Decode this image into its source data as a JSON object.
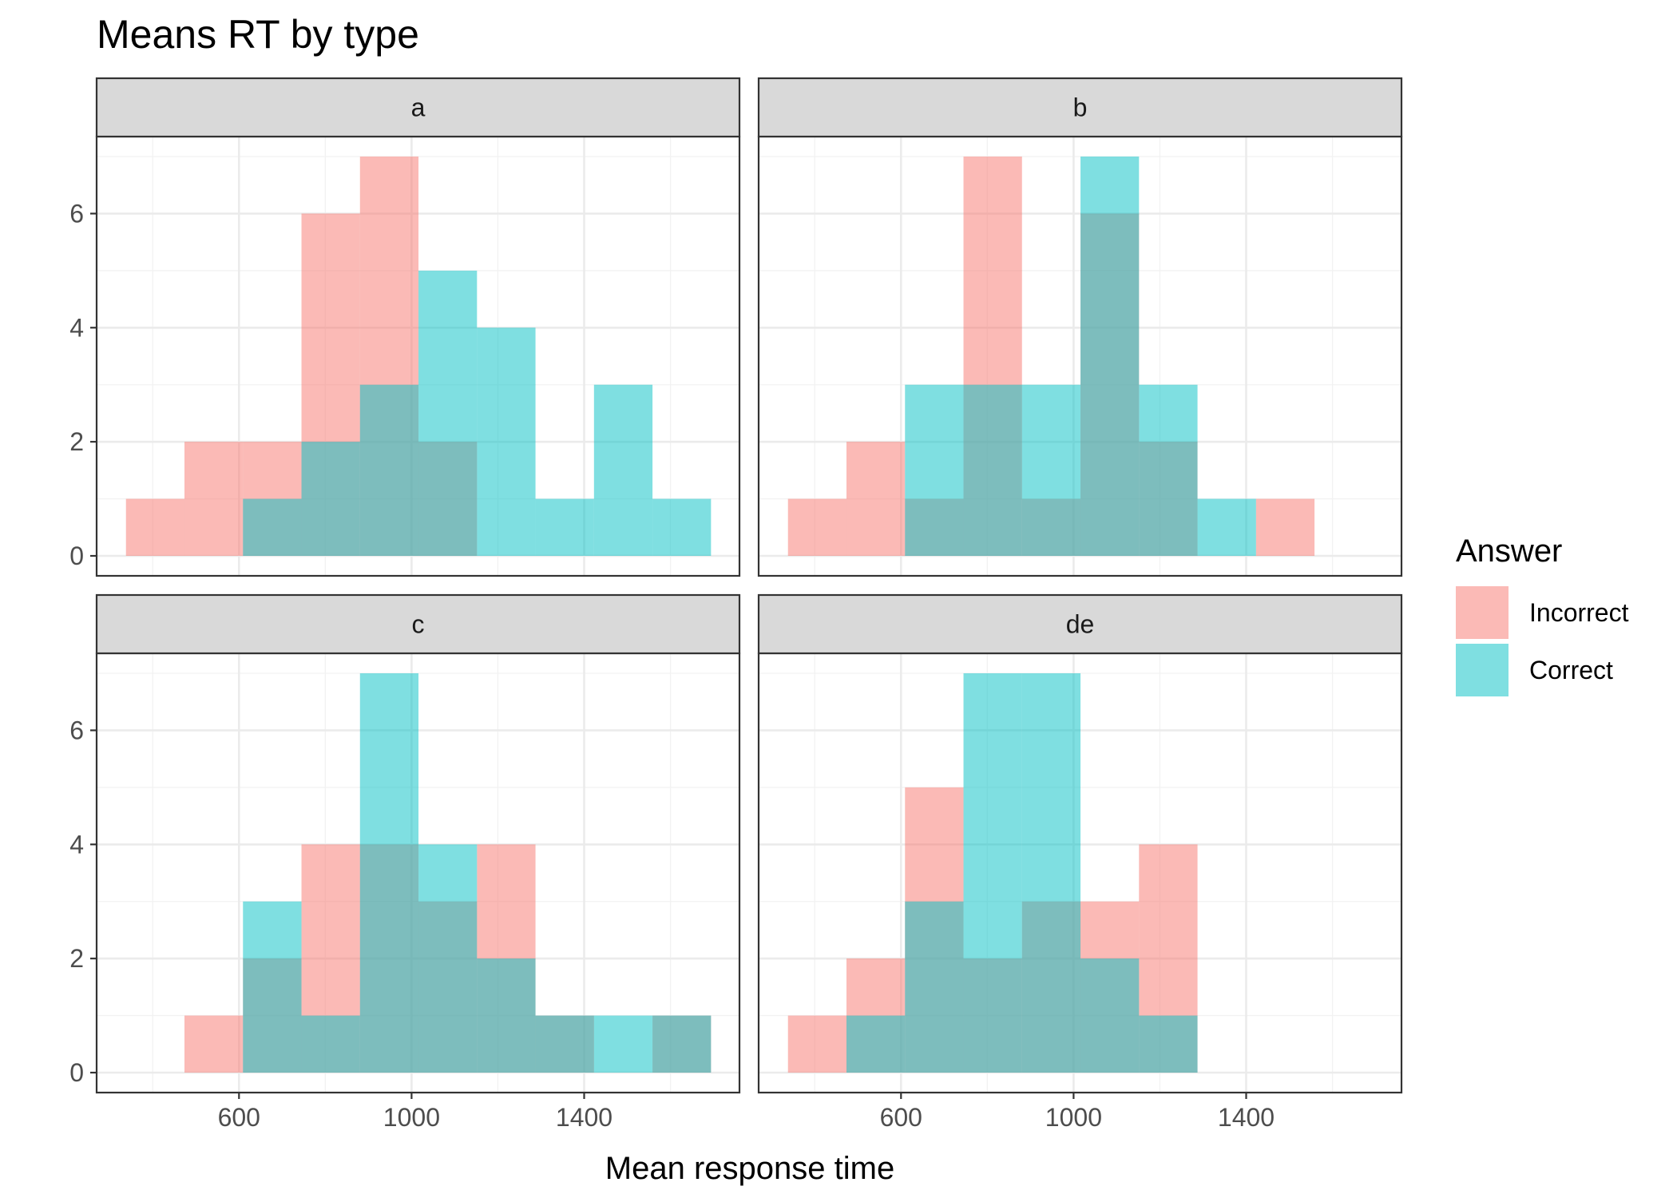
{
  "chart_data": {
    "type": "histogram",
    "title": "Means RT by type",
    "xlabel": "Mean response time",
    "ylabel": "",
    "xlim": [
      270,
      1760
    ],
    "ylim": [
      -0.35,
      7.35
    ],
    "x_ticks": [
      600,
      1000,
      1400
    ],
    "x_minor_ticks": [
      400,
      800,
      1200,
      1600
    ],
    "y_ticks": [
      0,
      2,
      4,
      6
    ],
    "y_minor_ticks": [
      1,
      3,
      5,
      7
    ],
    "bin_edges": [
      338.0,
      473.6,
      609.2,
      744.8,
      880.4,
      1016.0,
      1151.6,
      1287.2,
      1422.8,
      1558.4,
      1694.0
    ],
    "grid": true,
    "legend": {
      "title": "Answer",
      "position": "right",
      "entries": [
        {
          "label": "Incorrect",
          "color": "#F8766D"
        },
        {
          "label": "Correct",
          "color": "#00BFC4"
        }
      ]
    },
    "facets": [
      {
        "label": "a",
        "series": [
          {
            "name": "Incorrect",
            "values": [
              1,
              2,
              2,
              6,
              7,
              2,
              0,
              0,
              0,
              0
            ]
          },
          {
            "name": "Correct",
            "values": [
              0,
              0,
              1,
              2,
              3,
              5,
              4,
              1,
              3,
              1
            ]
          }
        ]
      },
      {
        "label": "b",
        "series": [
          {
            "name": "Incorrect",
            "values": [
              1,
              2,
              1,
              7,
              1,
              6,
              2,
              0,
              1,
              0
            ]
          },
          {
            "name": "Correct",
            "values": [
              0,
              0,
              3,
              3,
              3,
              7,
              3,
              1,
              0,
              0
            ]
          }
        ]
      },
      {
        "label": "c",
        "series": [
          {
            "name": "Incorrect",
            "values": [
              0,
              1,
              2,
              4,
              4,
              3,
              4,
              1,
              0,
              1
            ]
          },
          {
            "name": "Correct",
            "values": [
              0,
              0,
              3,
              1,
              7,
              4,
              2,
              1,
              1,
              1
            ]
          }
        ]
      },
      {
        "label": "de",
        "series": [
          {
            "name": "Incorrect",
            "values": [
              1,
              2,
              5,
              2,
              3,
              3,
              4,
              0,
              0,
              0
            ]
          },
          {
            "name": "Correct",
            "values": [
              0,
              1,
              3,
              7,
              7,
              2,
              1,
              0,
              0,
              0
            ]
          }
        ]
      }
    ]
  },
  "colors": {
    "incorrect": "#F8766D",
    "correct": "#00BFC4",
    "fill_opacity": 0.5,
    "strip_bg": "#D9D9D9",
    "panel_border": "#333333",
    "grid_major": "#EBEBEB",
    "grid_minor": "#F2F2F2"
  }
}
